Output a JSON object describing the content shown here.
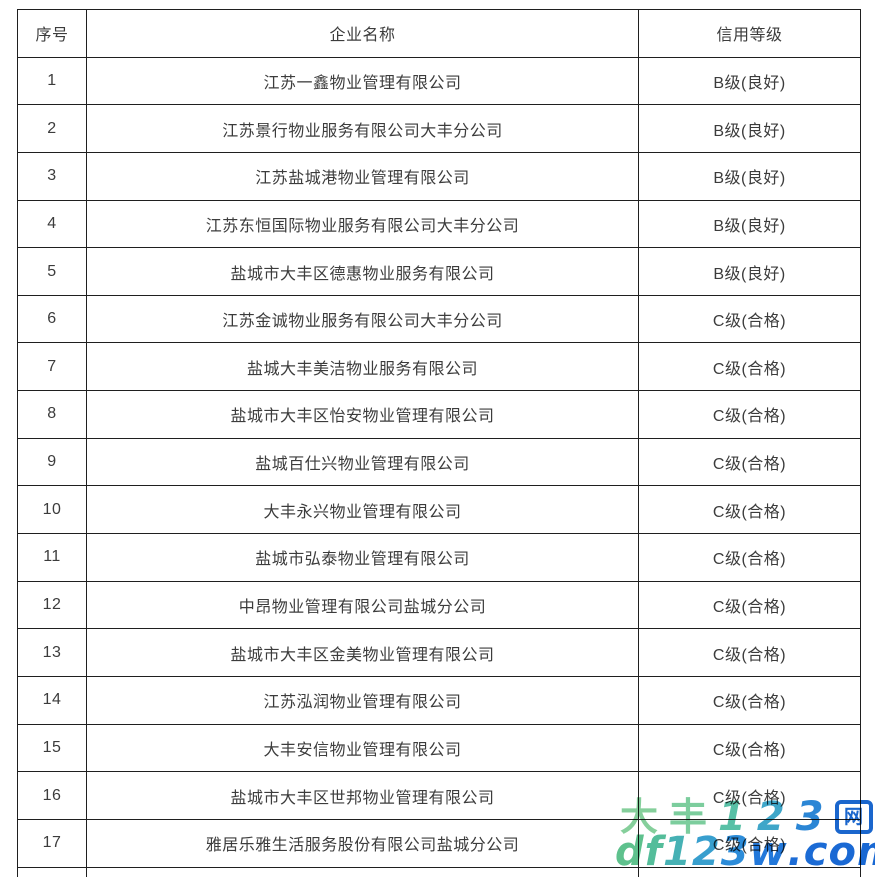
{
  "colors": {
    "background": "#ffffff",
    "table_border": "#1f1f1f",
    "table_text": "#3c3c3c",
    "watermark_green": "#7ccd9d",
    "watermark_blue": "#1a66cd"
  },
  "table": {
    "headers": [
      "序号",
      "企业名称",
      "信用等级"
    ],
    "rows": [
      [
        "1",
        "江苏一鑫物业管理有限公司",
        "B级(良好)"
      ],
      [
        "2",
        "江苏景行物业服务有限公司大丰分公司",
        "B级(良好)"
      ],
      [
        "3",
        "江苏盐城港物业管理有限公司",
        "B级(良好)"
      ],
      [
        "4",
        "江苏东恒国际物业服务有限公司大丰分公司",
        "B级(良好)"
      ],
      [
        "5",
        "盐城市大丰区德惠物业服务有限公司",
        "B级(良好)"
      ],
      [
        "6",
        "江苏金诚物业服务有限公司大丰分公司",
        "C级(合格)"
      ],
      [
        "7",
        "盐城大丰美洁物业服务有限公司",
        "C级(合格)"
      ],
      [
        "8",
        "盐城市大丰区怡安物业管理有限公司",
        "C级(合格)"
      ],
      [
        "9",
        "盐城百仕兴物业管理有限公司",
        "C级(合格)"
      ],
      [
        "10",
        "大丰永兴物业管理有限公司",
        "C级(合格)"
      ],
      [
        "11",
        "盐城市弘泰物业管理有限公司",
        "C级(合格)"
      ],
      [
        "12",
        "中昂物业管理有限公司盐城分公司",
        "C级(合格)"
      ],
      [
        "13",
        "盐城市大丰区金美物业管理有限公司",
        "C级(合格)"
      ],
      [
        "14",
        "江苏泓润物业管理有限公司",
        "C级(合格)"
      ],
      [
        "15",
        "大丰安信物业管理有限公司",
        "C级(合格)"
      ],
      [
        "16",
        "盐城市大丰区世邦物业管理有限公司",
        "C级(合格)"
      ],
      [
        "17",
        "雅居乐雅生活服务股份有限公司盐城分公司",
        "C级(合格)"
      ]
    ]
  },
  "watermark": {
    "line1": [
      {
        "ch": "大",
        "color": "#85cf9b",
        "kind": "cjk"
      },
      {
        "ch": "丰",
        "color": "#7ccd9d",
        "kind": "cjk"
      },
      {
        "ch": "1",
        "color": "#58c0a6",
        "kind": "digit"
      },
      {
        "ch": "2",
        "color": "#3fa6c9",
        "kind": "digit"
      },
      {
        "ch": "3",
        "color": "#2b86d5",
        "kind": "digit"
      },
      {
        "ch": "网",
        "color": "#1a66cd",
        "kind": "boxed"
      }
    ],
    "line2": [
      {
        "ch": "d",
        "color": "#5ec18d"
      },
      {
        "ch": "f",
        "color": "#54bd9a"
      },
      {
        "ch": "1",
        "color": "#46b1b4"
      },
      {
        "ch": "2",
        "color": "#389fce"
      },
      {
        "ch": "3",
        "color": "#2c8cd9"
      },
      {
        "ch": "w",
        "color": "#2278da"
      },
      {
        "ch": ".",
        "color": "#1c6cd6"
      },
      {
        "ch": "c",
        "color": "#1b6bd5"
      },
      {
        "ch": "o",
        "color": "#1a69d4"
      },
      {
        "ch": "m",
        "color": "#1968d3"
      }
    ]
  }
}
